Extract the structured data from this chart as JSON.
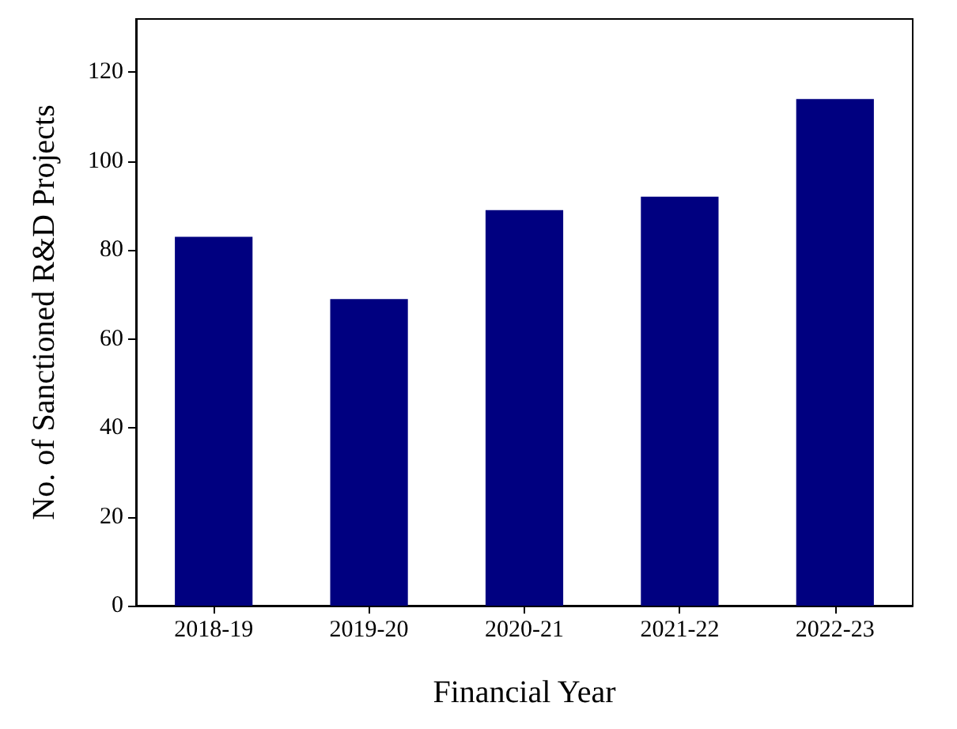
{
  "chart_data": {
    "type": "bar",
    "xlabel": "Financial Year",
    "ylabel": "No. of Sanctioned R&D Projects",
    "categories": [
      "2018-19",
      "2019-20",
      "2020-21",
      "2021-22",
      "2022-23"
    ],
    "values": [
      83,
      69,
      89,
      92,
      114
    ],
    "color": "#000080",
    "ylim": [
      0,
      132
    ],
    "yticks": [
      0,
      20,
      40,
      60,
      80,
      100,
      120
    ],
    "grid": false
  }
}
